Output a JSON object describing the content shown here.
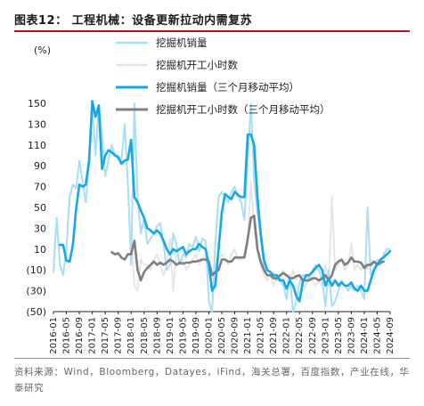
{
  "header": {
    "title": "图表12：  工程机械：设备更新拉动内需复苏"
  },
  "source": {
    "text": "资料来源：Wind，Bloomberg，Datayes，iFind，海关总署，百度指数，产业在线，华泰研究"
  },
  "colors": {
    "excavator_sales": "#a9def4",
    "operating_hours": "#e6e6e6",
    "excavator_sales_3mma": "#16a7e4",
    "operating_hours_3mma": "#7f7f7f",
    "title_rule": "#b01c1c"
  },
  "chart_data": {
    "type": "line",
    "ylabel": "(%)",
    "ylim": [
      -50,
      150
    ],
    "yticks": [
      -50,
      -30,
      -10,
      10,
      30,
      50,
      70,
      90,
      110,
      130,
      150
    ],
    "ytick_labels": [
      "(50)",
      "(30)",
      "(10)",
      "10",
      "30",
      "50",
      "70",
      "90",
      "110",
      "130",
      "150"
    ],
    "x_categories": [
      "2016-01",
      "2016-05",
      "2016-09",
      "2017-01",
      "2017-05",
      "2017-09",
      "2018-01",
      "2018-05",
      "2018-09",
      "2019-01",
      "2019-05",
      "2019-09",
      "2020-01",
      "2020-05",
      "2020-09",
      "2021-01",
      "2021-05",
      "2021-09",
      "2022-01",
      "2022-05",
      "2022-09",
      "2023-01",
      "2023-05",
      "2023-09",
      "2024-01",
      "2024-05",
      "2024-09"
    ],
    "grid": false,
    "legend_position": "top-left",
    "series": [
      {
        "name": "挖掘机销量",
        "color_key": "excavator_sales",
        "x": [
          "2016-01",
          "2016-02",
          "2016-03",
          "2016-04",
          "2016-05",
          "2016-06",
          "2016-07",
          "2016-08",
          "2016-09",
          "2016-10",
          "2016-11",
          "2016-12",
          "2017-01",
          "2017-02",
          "2017-03",
          "2017-04",
          "2017-05",
          "2017-06",
          "2017-07",
          "2017-08",
          "2017-09",
          "2017-10",
          "2017-11",
          "2017-12",
          "2018-01",
          "2018-02",
          "2018-03",
          "2018-04",
          "2018-05",
          "2018-06",
          "2018-07",
          "2018-08",
          "2018-09",
          "2018-10",
          "2018-11",
          "2018-12",
          "2019-01",
          "2019-02",
          "2019-03",
          "2019-04",
          "2019-05",
          "2019-06",
          "2019-07",
          "2019-08",
          "2019-09",
          "2019-10",
          "2019-11",
          "2019-12",
          "2020-01",
          "2020-02",
          "2020-03",
          "2020-04",
          "2020-05",
          "2020-06",
          "2020-07",
          "2020-08",
          "2020-09",
          "2020-10",
          "2020-11",
          "2020-12",
          "2021-01",
          "2021-02",
          "2021-03",
          "2021-04",
          "2021-05",
          "2021-06",
          "2021-07",
          "2021-08",
          "2021-09",
          "2021-10",
          "2021-11",
          "2021-12",
          "2022-01",
          "2022-02",
          "2022-03",
          "2022-04",
          "2022-05",
          "2022-06",
          "2022-07",
          "2022-08",
          "2022-09",
          "2022-10",
          "2022-11",
          "2022-12",
          "2023-01",
          "2023-02",
          "2023-03",
          "2023-04",
          "2023-05",
          "2023-06",
          "2023-07",
          "2023-08",
          "2023-09",
          "2023-10",
          "2023-11",
          "2023-12",
          "2024-01",
          "2024-02",
          "2024-03",
          "2024-04",
          "2024-05",
          "2024-06",
          "2024-07",
          "2024-08",
          "2024-09"
        ],
        "values": [
          -12,
          40,
          -5,
          -15,
          10,
          60,
          72,
          68,
          95,
          75,
          55,
          90,
          150,
          100,
          148,
          120,
          80,
          95,
          110,
          100,
          100,
          95,
          130,
          72,
          -5,
          150,
          60,
          25,
          40,
          15,
          20,
          25,
          32,
          35,
          15,
          -10,
          -5,
          25,
          15,
          -5,
          5,
          2,
          15,
          12,
          22,
          8,
          20,
          18,
          -40,
          -50,
          15,
          60,
          65,
          60,
          55,
          65,
          70,
          60,
          55,
          38,
          95,
          150,
          75,
          45,
          22,
          -8,
          -15,
          -15,
          -15,
          -20,
          -20,
          -25,
          -38,
          -15,
          -50,
          -40,
          -22,
          -15,
          -15,
          -18,
          -10,
          -5,
          -10,
          -20,
          -45,
          -10,
          -45,
          -40,
          -30,
          -20,
          -25,
          -30,
          -25,
          -30,
          -25,
          -30,
          -38,
          50,
          -15,
          -10,
          0,
          -5,
          5,
          10,
          10
        ]
      },
      {
        "name": "挖掘机开工小时数",
        "color_key": "operating_hours",
        "x": [
          "2018-01",
          "2018-02",
          "2018-03",
          "2018-04",
          "2018-05",
          "2018-06",
          "2018-07",
          "2018-08",
          "2018-09",
          "2018-10",
          "2018-11",
          "2018-12",
          "2019-01",
          "2019-02",
          "2019-03",
          "2019-04",
          "2019-05",
          "2019-06",
          "2019-07",
          "2019-08",
          "2019-09",
          "2019-10",
          "2019-11",
          "2019-12",
          "2020-01",
          "2020-02",
          "2020-03",
          "2020-04",
          "2020-05",
          "2020-06",
          "2020-07",
          "2020-08",
          "2020-09",
          "2020-10",
          "2020-11",
          "2020-12",
          "2021-01",
          "2021-02",
          "2021-03",
          "2021-04",
          "2021-05",
          "2021-06",
          "2021-07",
          "2021-08",
          "2021-09",
          "2021-10",
          "2021-11",
          "2021-12",
          "2022-01",
          "2022-02",
          "2022-03",
          "2022-04",
          "2022-05",
          "2022-06",
          "2022-07",
          "2022-08",
          "2022-09",
          "2022-10",
          "2022-11",
          "2022-12",
          "2023-01",
          "2023-02",
          "2023-03",
          "2023-04",
          "2023-05",
          "2023-06",
          "2023-07",
          "2023-08",
          "2023-09",
          "2023-10",
          "2023-11",
          "2023-12",
          "2024-01",
          "2024-02",
          "2024-03",
          "2024-04",
          "2024-05",
          "2024-06"
        ],
        "values": [
          25,
          -25,
          -30,
          0,
          -5,
          -5,
          -10,
          0,
          5,
          -5,
          -15,
          -5,
          20,
          -30,
          10,
          -5,
          0,
          -10,
          -5,
          0,
          5,
          -5,
          0,
          5,
          -10,
          -30,
          -5,
          0,
          5,
          0,
          -5,
          5,
          10,
          0,
          0,
          5,
          15,
          75,
          30,
          10,
          -5,
          -15,
          -20,
          -15,
          -25,
          -15,
          -20,
          -10,
          -20,
          -25,
          -10,
          -20,
          -15,
          -30,
          -25,
          -15,
          -20,
          -25,
          -20,
          -25,
          -5,
          -25,
          60,
          -10,
          -5,
          0,
          -10,
          -5,
          15,
          -10,
          -5,
          -10,
          -5,
          -10,
          0,
          -10,
          -5,
          -5
        ]
      },
      {
        "name": "挖掘机销量（三个月移动平均）",
        "color_key": "excavator_sales_3mma",
        "x": [
          "2016-03",
          "2016-04",
          "2016-05",
          "2016-06",
          "2016-07",
          "2016-08",
          "2016-09",
          "2016-10",
          "2016-11",
          "2016-12",
          "2017-01",
          "2017-02",
          "2017-03",
          "2017-04",
          "2017-05",
          "2017-06",
          "2017-07",
          "2017-08",
          "2017-09",
          "2017-10",
          "2017-11",
          "2017-12",
          "2018-01",
          "2018-02",
          "2018-03",
          "2018-04",
          "2018-05",
          "2018-06",
          "2018-07",
          "2018-08",
          "2018-09",
          "2018-10",
          "2018-11",
          "2018-12",
          "2019-01",
          "2019-02",
          "2019-03",
          "2019-04",
          "2019-05",
          "2019-06",
          "2019-07",
          "2019-08",
          "2019-09",
          "2019-10",
          "2019-11",
          "2019-12",
          "2020-01",
          "2020-02",
          "2020-03",
          "2020-04",
          "2020-05",
          "2020-06",
          "2020-07",
          "2020-08",
          "2020-09",
          "2020-10",
          "2020-11",
          "2020-12",
          "2021-01",
          "2021-02",
          "2021-03",
          "2021-04",
          "2021-05",
          "2021-06",
          "2021-07",
          "2021-08",
          "2021-09",
          "2021-10",
          "2021-11",
          "2021-12",
          "2022-01",
          "2022-02",
          "2022-03",
          "2022-04",
          "2022-05",
          "2022-06",
          "2022-07",
          "2022-08",
          "2022-09",
          "2022-10",
          "2022-11",
          "2022-12",
          "2023-01",
          "2023-02",
          "2023-03",
          "2023-04",
          "2023-05",
          "2023-06",
          "2023-07",
          "2023-08",
          "2023-09",
          "2023-10",
          "2023-11",
          "2023-12",
          "2024-01",
          "2024-02",
          "2024-03",
          "2024-04",
          "2024-05",
          "2024-06",
          "2024-07",
          "2024-08",
          "2024-09"
        ],
        "values": [
          14,
          14,
          -1,
          -2,
          14,
          48,
          72,
          70,
          72,
          95,
          152,
          137,
          148,
          87,
          100,
          105,
          103,
          100,
          98,
          92,
          95,
          96,
          115,
          60,
          55,
          47,
          40,
          30,
          28,
          25,
          28,
          25,
          18,
          10,
          5,
          10,
          8,
          10,
          12,
          5,
          8,
          10,
          10,
          15,
          12,
          10,
          -5,
          -30,
          -25,
          10,
          45,
          63,
          60,
          58,
          65,
          62,
          60,
          60,
          120,
          120,
          110,
          60,
          25,
          0,
          -10,
          -12,
          -15,
          -15,
          -20,
          -20,
          -28,
          -20,
          -25,
          -35,
          -40,
          -22,
          -15,
          -15,
          -12,
          -8,
          -5,
          -10,
          -25,
          -18,
          -25,
          -20,
          -25,
          -22,
          -25,
          -25,
          -22,
          -28,
          -30,
          -25,
          -30,
          -30,
          -20,
          -10,
          -5,
          0,
          2,
          5,
          8
        ]
      },
      {
        "name": "挖掘机开工小时数（三个月移动平均）",
        "color_key": "operating_hours_3mma",
        "x": [
          "2017-07",
          "2017-08",
          "2017-09",
          "2017-10",
          "2017-11",
          "2017-12",
          "2018-01",
          "2018-02",
          "2018-03",
          "2018-04",
          "2018-05",
          "2018-06",
          "2018-07",
          "2018-08",
          "2018-09",
          "2018-10",
          "2018-11",
          "2018-12",
          "2019-01",
          "2019-02",
          "2019-03",
          "2019-04",
          "2019-05",
          "2019-06",
          "2019-07",
          "2019-08",
          "2019-09",
          "2019-10",
          "2019-11",
          "2019-12",
          "2020-01",
          "2020-02",
          "2020-03",
          "2020-04",
          "2020-05",
          "2020-06",
          "2020-07",
          "2020-08",
          "2020-09",
          "2020-10",
          "2020-11",
          "2020-12",
          "2021-01",
          "2021-02",
          "2021-03",
          "2021-04",
          "2021-05",
          "2021-06",
          "2021-07",
          "2021-08",
          "2021-09",
          "2021-10",
          "2021-11",
          "2021-12",
          "2022-01",
          "2022-02",
          "2022-03",
          "2022-04",
          "2022-05",
          "2022-06",
          "2022-07",
          "2022-08",
          "2022-09",
          "2022-10",
          "2022-11",
          "2022-12",
          "2023-01",
          "2023-02",
          "2023-03",
          "2023-04",
          "2023-05",
          "2023-06",
          "2023-07",
          "2023-08",
          "2023-09",
          "2023-10",
          "2023-11",
          "2023-12",
          "2024-01",
          "2024-02",
          "2024-03",
          "2024-04",
          "2024-05",
          "2024-06",
          "2024-07"
        ],
        "values": [
          7,
          5,
          6,
          2,
          0,
          5,
          5,
          18,
          -10,
          -20,
          -12,
          -8,
          -5,
          -2,
          -5,
          -3,
          -5,
          -3,
          0,
          -2,
          -5,
          -3,
          -4,
          -3,
          -3,
          -2,
          -2,
          -1,
          0,
          0,
          -2,
          -15,
          -12,
          -10,
          0,
          0,
          -2,
          -2,
          2,
          2,
          2,
          2,
          20,
          40,
          42,
          10,
          -2,
          -10,
          -15,
          -15,
          -18,
          -18,
          -15,
          -13,
          -15,
          -18,
          -18,
          -16,
          -15,
          -20,
          -20,
          -20,
          -18,
          -18,
          -20,
          -18,
          -15,
          -20,
          -15,
          -5,
          -2,
          0,
          -5,
          -3,
          2,
          -2,
          -2,
          -3,
          -8,
          -5,
          -5,
          -2,
          -5,
          -3,
          -2
        ]
      }
    ]
  }
}
